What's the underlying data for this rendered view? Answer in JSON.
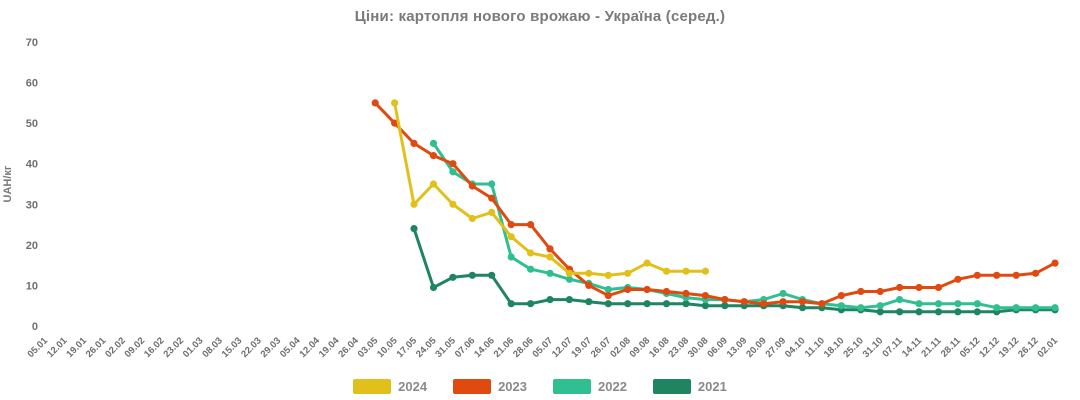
{
  "chart_data": {
    "type": "line",
    "title": "Ціни: картопля нового врожаю - Україна (серед.)",
    "ylabel": "UAH/кг",
    "ylim": [
      0,
      70
    ],
    "yticks": [
      0,
      10,
      20,
      30,
      40,
      50,
      60,
      70
    ],
    "grid": false,
    "legend_position": "bottom",
    "marker": "circle",
    "categories": [
      "05.01",
      "12.01",
      "19.01",
      "26.01",
      "02.02",
      "09.02",
      "16.02",
      "23.02",
      "01.03",
      "08.03",
      "15.03",
      "22.03",
      "29.03",
      "05.04",
      "12.04",
      "19.04",
      "26.04",
      "03.05",
      "10.05",
      "17.05",
      "24.05",
      "31.05",
      "07.06",
      "14.06",
      "21.06",
      "28.06",
      "05.07",
      "12.07",
      "19.07",
      "26.07",
      "02.08",
      "09.08",
      "16.08",
      "23.08",
      "30.08",
      "06.09",
      "13.09",
      "20.09",
      "27.09",
      "04.10",
      "11.10",
      "18.10",
      "25.10",
      "31.10",
      "07.11",
      "14.11",
      "21.11",
      "28.11",
      "05.12",
      "12.12",
      "19.12",
      "26.12",
      "02.01"
    ],
    "series": [
      {
        "name": "2024",
        "color": "#e2c01c",
        "start_category": "10.05",
        "start": 18,
        "values": [
          55,
          30,
          35,
          30,
          26.5,
          28,
          22,
          18,
          17,
          13,
          13,
          12.5,
          13,
          15.5,
          13.5,
          13.5,
          13.5
        ]
      },
      {
        "name": "2023",
        "color": "#e04a10",
        "start_category": "03.05",
        "start": 17,
        "values": [
          55,
          50,
          45,
          42,
          40,
          34.5,
          31.5,
          25,
          25,
          19,
          14,
          10,
          7.5,
          9,
          9,
          8.5,
          8,
          7.5,
          6.5,
          6,
          5.5,
          6,
          6,
          5.5,
          7.5,
          8.5,
          8.5,
          9.5,
          9.5,
          9.5,
          11.5,
          12.5,
          12.5,
          12.5,
          13,
          15.5
        ]
      },
      {
        "name": "2022",
        "color": "#2fbf90",
        "start_category": "24.05",
        "start": 20,
        "values": [
          45,
          38,
          35,
          35,
          17,
          14,
          13,
          11.5,
          10.5,
          9,
          9.5,
          9,
          8,
          7,
          6.5,
          6.5,
          6,
          6.5,
          8,
          6.5,
          5.5,
          5,
          4.5,
          5,
          6.5,
          5.5,
          5.5,
          5.5,
          5.5,
          4.5,
          4.5,
          4.5,
          4.5
        ]
      },
      {
        "name": "2021",
        "color": "#1f8560",
        "start_category": "17.05",
        "start": 19,
        "values": [
          24,
          9.5,
          12,
          12.5,
          12.5,
          5.5,
          5.5,
          6.5,
          6.5,
          6,
          5.5,
          5.5,
          5.5,
          5.5,
          5.5,
          5,
          5,
          5,
          5,
          5,
          4.5,
          4.5,
          4,
          4,
          3.5,
          3.5,
          3.5,
          3.5,
          3.5,
          3.5,
          3.5,
          4,
          4,
          4
        ]
      }
    ]
  },
  "colors": {
    "background": "#ffffff",
    "title_text": "#7a7a7a",
    "tick_text": "#6f6f6f",
    "legend_text": "#8a8a8a"
  }
}
